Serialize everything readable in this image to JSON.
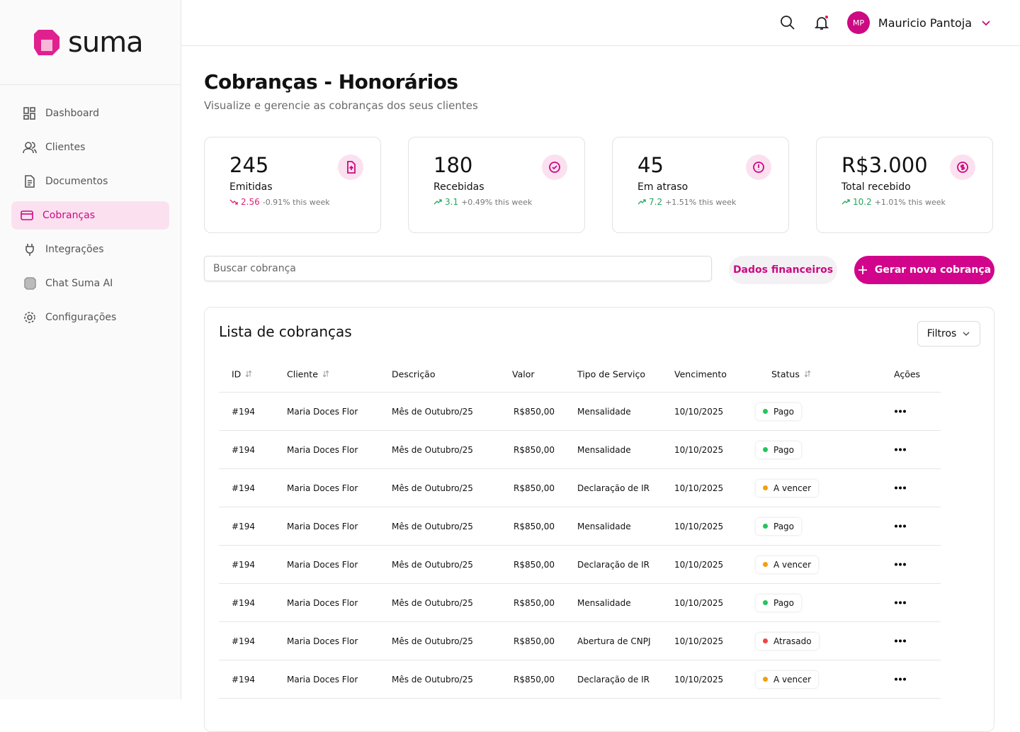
{
  "brand": "suma",
  "nav": [
    "Dashboard",
    "Clientes",
    "Documentos",
    "Cobranças",
    "Integrações",
    "Chat Suma AI",
    "Configurações"
  ],
  "user": {
    "initials": "MP",
    "name": "Mauricio Pantoja"
  },
  "header": {
    "title": "Cobranças - Honorários",
    "subtitle": "Visualize e gerencie as cobranças dos seus clientes"
  },
  "stats": [
    {
      "value": "245",
      "label": "Emitidas",
      "delta": "2.56",
      "change": "-0.91% this week",
      "trend_color": "#e11d74"
    },
    {
      "value": "180",
      "label": "Recebidas",
      "delta": "3.1",
      "change": "+0.49% this week",
      "trend_color": "#22a55b"
    },
    {
      "value": "45",
      "label": "Em atraso",
      "delta": "7.2",
      "change": "+1.51% this week",
      "trend_color": "#22a55b"
    },
    {
      "value": "R$3.000",
      "label": "Total recebido",
      "delta": "10.2",
      "change": "+1.01% this week",
      "trend_color": "#22a55b"
    }
  ],
  "search_placeholder": "Buscar cobrança",
  "buttons": {
    "secondary": "Dados financeiros",
    "primary": "Gerar nova cobrança"
  },
  "table": {
    "title": "Lista de cobranças",
    "filter": "Filtros",
    "columns": [
      "ID",
      "Cliente",
      "Descrição",
      "Valor",
      "Tipo de Serviço",
      "Vencimento",
      "Status",
      "Ações"
    ],
    "rows": [
      [
        "#194",
        "Maria Doces Flor",
        "Mês de Outubro/25",
        "R$850,00",
        "Mensalidade",
        "10/10/2025",
        {
          "label": "Pago",
          "color": "#22c55e"
        }
      ],
      [
        "#194",
        "Maria Doces Flor",
        "Mês de Outubro/25",
        "R$850,00",
        "Mensalidade",
        "10/10/2025",
        {
          "label": "Pago",
          "color": "#22c55e"
        }
      ],
      [
        "#194",
        "Maria Doces Flor",
        "Mês de Outubro/25",
        "R$850,00",
        "Declaração de IR",
        "10/10/2025",
        {
          "label": "A vencer",
          "color": "#f59e0b"
        }
      ],
      [
        "#194",
        "Maria Doces Flor",
        "Mês de Outubro/25",
        "R$850,00",
        "Mensalidade",
        "10/10/2025",
        {
          "label": "Pago",
          "color": "#22c55e"
        }
      ],
      [
        "#194",
        "Maria Doces Flor",
        "Mês de Outubro/25",
        "R$850,00",
        "Declaração de IR",
        "10/10/2025",
        {
          "label": "A vencer",
          "color": "#f59e0b"
        }
      ],
      [
        "#194",
        "Maria Doces Flor",
        "Mês de Outubro/25",
        "R$850,00",
        "Mensalidade",
        "10/10/2025",
        {
          "label": "Pago",
          "color": "#22c55e"
        }
      ],
      [
        "#194",
        "Maria Doces Flor",
        "Mês de Outubro/25",
        "R$850,00",
        "Abertura de CNPJ",
        "10/10/2025",
        {
          "label": "Atrasado",
          "color": "#ef4444"
        }
      ],
      [
        "#194",
        "Maria Doces Flor",
        "Mês de Outubro/25",
        "R$850,00",
        "Declaração de IR",
        "10/10/2025",
        {
          "label": "A vencer",
          "color": "#f59e0b"
        }
      ]
    ]
  }
}
